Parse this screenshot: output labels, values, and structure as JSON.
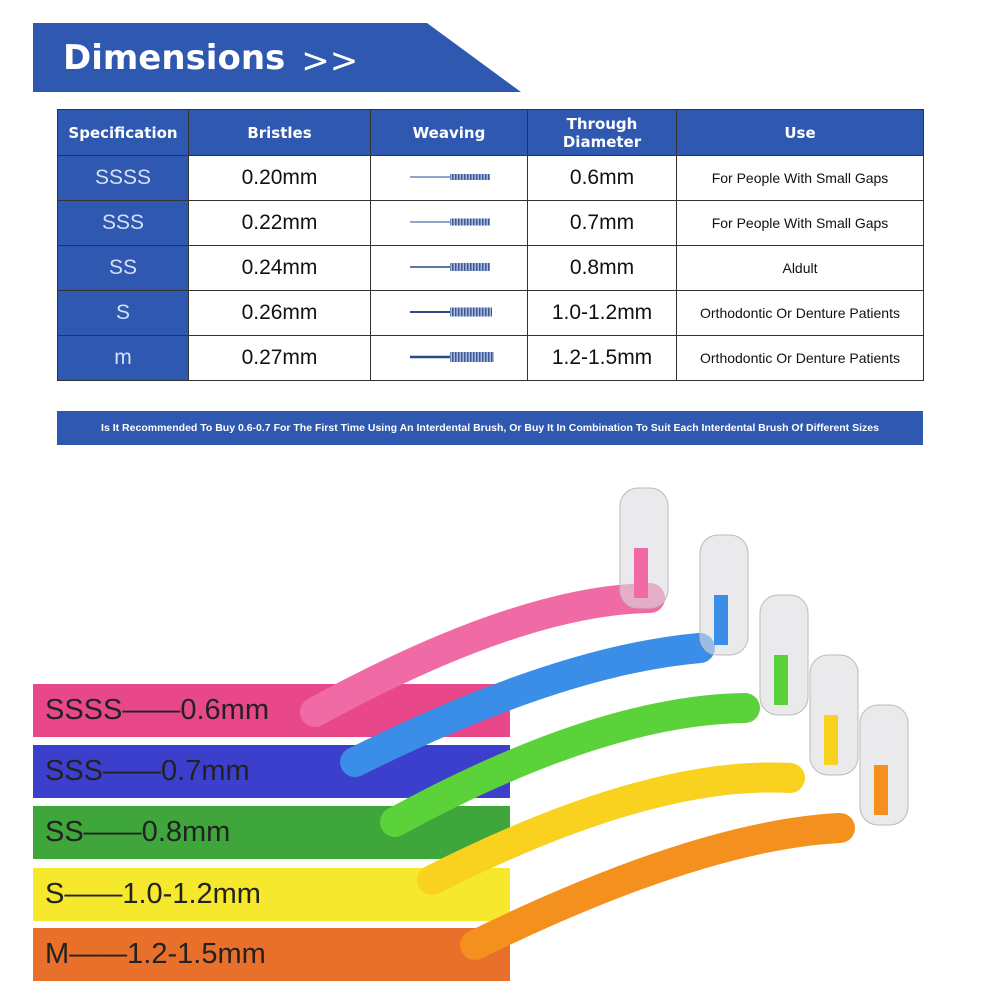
{
  "header": {
    "title": "Dimensions",
    "chevron": ">>"
  },
  "table": {
    "columns": [
      "Specification",
      "Bristles",
      "Weaving",
      "Through Diameter",
      "Use"
    ],
    "rows": [
      {
        "spec": "SSSS",
        "bristles": "0.20mm",
        "diameter": "0.6mm",
        "use": "For People With Small Gaps"
      },
      {
        "spec": "SSS",
        "bristles": "0.22mm",
        "diameter": "0.7mm",
        "use": "For People With Small Gaps"
      },
      {
        "spec": "SS",
        "bristles": "0.24mm",
        "diameter": "0.8mm",
        "use": "Aldult"
      },
      {
        "spec": "S",
        "bristles": "0.26mm",
        "diameter": "1.0-1.2mm",
        "use": "Orthodontic Or Denture Patients"
      },
      {
        "spec": "m",
        "bristles": "0.27mm",
        "diameter": "1.2-1.5mm",
        "use": "Orthodontic Or Denture Patients"
      }
    ]
  },
  "note": "Is It Recommended To Buy 0.6-0.7 For The First Time Using An Interdental Brush, Or Buy It In Combination To Suit Each Interdental Brush Of Different Sizes",
  "bands": [
    {
      "label": "SSSS——0.6mm",
      "color": "#e8488a"
    },
    {
      "label": "SSS——0.7mm",
      "color": "#3b3fcc"
    },
    {
      "label": "SS——0.8mm",
      "color": "#3ea63a"
    },
    {
      "label": "S——1.0-1.2mm",
      "color": "#f6e82c"
    },
    {
      "label": "M——1.2-1.5mm",
      "color": "#e8702a"
    }
  ],
  "brush_colors": [
    "#f06aa6",
    "#3a8ee8",
    "#5cd23a",
    "#f8d21e",
    "#f4901e"
  ],
  "accent": "#2f58b0"
}
